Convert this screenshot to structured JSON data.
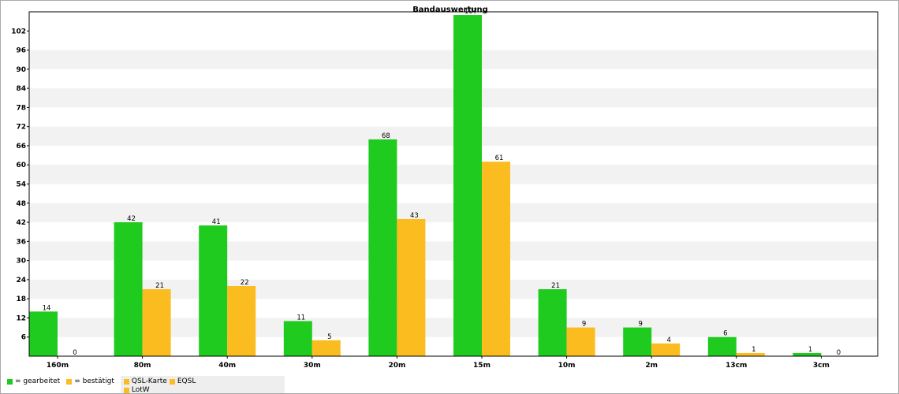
{
  "chart_data": {
    "type": "bar",
    "title": "Bandauswertung",
    "categories": [
      "160m",
      "80m",
      "40m",
      "30m",
      "20m",
      "15m",
      "10m",
      "2m",
      "13cm",
      "3cm"
    ],
    "series": [
      {
        "name": "gearbeitet",
        "color": "#1ecb1e",
        "values": [
          14,
          42,
          41,
          11,
          68,
          107,
          21,
          9,
          6,
          1
        ]
      },
      {
        "name": "bestätigt",
        "color": "#fbbc1f",
        "values": [
          0,
          21,
          22,
          5,
          43,
          61,
          9,
          4,
          1,
          0
        ]
      }
    ],
    "ylim": [
      0,
      108
    ],
    "yticks": [
      6,
      12,
      18,
      24,
      30,
      36,
      42,
      48,
      54,
      60,
      66,
      72,
      78,
      84,
      90,
      96,
      102
    ],
    "grid": "alternating horizontal bands",
    "legend_position": "bottom-left"
  },
  "legend": {
    "worked_label": "= gearbeitet",
    "confirmed_label": "= bestätigt",
    "qsl_card_label": "QSL-Karte",
    "eqsl_label": "EQSL",
    "lotw_label": "LotW"
  },
  "colors": {
    "worked": "#1ecb1e",
    "confirmed": "#fbbc1f",
    "band_shade": "#f2f2f2"
  }
}
